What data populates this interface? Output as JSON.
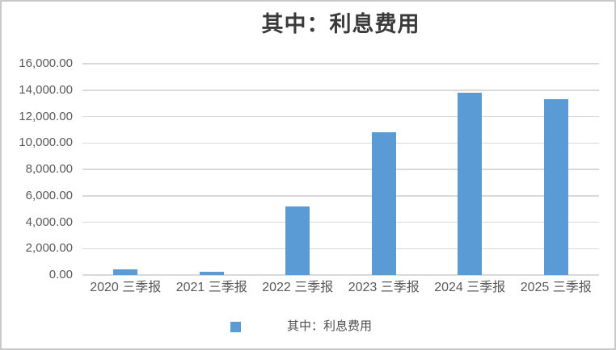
{
  "title": "其中：利息费用",
  "legend": {
    "label": "其中：利息费用"
  },
  "colors": {
    "bar": "#5B9BD5",
    "grid": "#D9D9D9",
    "axis_text": "#595959",
    "title_text": "#3A3A3A",
    "frame_border": "#C9C9C9",
    "background": "#FFFFFF"
  },
  "chart_data": {
    "type": "bar",
    "title": "其中：利息费用",
    "categories": [
      "2020 三季报",
      "2021 三季报",
      "2022 三季报",
      "2023 三季报",
      "2024 三季报",
      "2025 三季报"
    ],
    "series": [
      {
        "name": "其中：利息费用",
        "values": [
          430,
          260,
          5200,
          10800,
          13800,
          13300
        ]
      }
    ],
    "xlabel": "",
    "ylabel": "",
    "ylim": [
      0,
      16000
    ],
    "ytick_step": 2000,
    "ytick_labels": [
      "0.00",
      "2,000.00",
      "4,000.00",
      "6,000.00",
      "8,000.00",
      "10,000.00",
      "12,000.00",
      "14,000.00",
      "16,000.00"
    ],
    "grid": true,
    "legend_position": "bottom"
  }
}
